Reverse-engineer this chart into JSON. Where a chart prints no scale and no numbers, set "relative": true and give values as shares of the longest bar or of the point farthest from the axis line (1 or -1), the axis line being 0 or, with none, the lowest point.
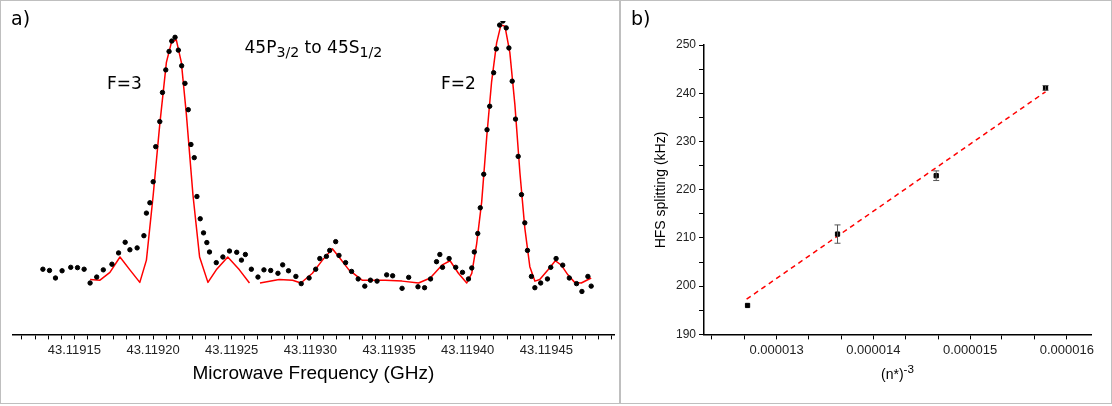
{
  "chart_data": [
    {
      "type": "scatter",
      "title": "45P$_{3/2}$ to 45S$_{1/2}$",
      "xlabel": "Microwave Frequency (GHz)",
      "relative": true,
      "xlim": [
        43.119111,
        43.119493
      ],
      "xticks": [
        {
          "value": 43.11911667,
          "label": null
        },
        {
          "value": 43.119125,
          "label": null
        },
        {
          "value": 43.11913333,
          "label": null
        },
        {
          "value": 43.11914167,
          "label": null
        },
        43.11915,
        {
          "value": 43.11915833,
          "label": null
        },
        {
          "value": 43.11916667,
          "label": null
        },
        {
          "value": 43.119175,
          "label": null
        },
        {
          "value": 43.11918333,
          "label": null
        },
        {
          "value": 43.11919167,
          "label": null
        },
        {
          "value": 43.1192,
          "label": "43.11920"
        },
        {
          "value": 43.11920833,
          "label": null
        },
        {
          "value": 43.11921667,
          "label": null
        },
        {
          "value": 43.119225,
          "label": null
        },
        {
          "value": 43.11923333,
          "label": null
        },
        {
          "value": 43.11924167,
          "label": null
        },
        43.11925,
        {
          "value": 43.11925833,
          "label": null
        },
        {
          "value": 43.11926667,
          "label": null
        },
        {
          "value": 43.119275,
          "label": null
        },
        {
          "value": 43.11928333,
          "label": null
        },
        {
          "value": 43.11929167,
          "label": null
        },
        {
          "value": 43.1193,
          "label": "43.11930"
        },
        {
          "value": 43.11930833,
          "label": null
        },
        {
          "value": 43.11931667,
          "label": null
        },
        {
          "value": 43.119325,
          "label": null
        },
        {
          "value": 43.11933333,
          "label": null
        },
        {
          "value": 43.11934167,
          "label": null
        },
        43.11935,
        {
          "value": 43.11935833,
          "label": null
        },
        {
          "value": 43.11936667,
          "label": null
        },
        {
          "value": 43.119375,
          "label": null
        },
        {
          "value": 43.11938333,
          "label": null
        },
        {
          "value": 43.11939167,
          "label": null
        },
        {
          "value": 43.1194,
          "label": "43.11940"
        },
        {
          "value": 43.11940833,
          "label": null
        },
        {
          "value": 43.11941667,
          "label": null
        },
        {
          "value": 43.119425,
          "label": null
        },
        {
          "value": 43.11943333,
          "label": null
        },
        {
          "value": 43.11944167,
          "label": null
        },
        43.11945,
        {
          "value": 43.11945833,
          "label": null
        },
        {
          "value": 43.11946667,
          "label": null
        },
        {
          "value": 43.119475,
          "label": null
        },
        {
          "value": 43.11948333,
          "label": null
        },
        {
          "value": 43.11949167,
          "label": null
        }
      ],
      "annotations": [
        "a)",
        "F=3",
        "F=2"
      ],
      "series": [
        {
          "type": "scatter",
          "marker": "circle",
          "color": "#000000",
          "x": [
            43.11913,
            43.1191342,
            43.119138,
            43.1191422,
            43.1191477,
            43.119152,
            43.1191562,
            43.11916,
            43.1191642,
            43.1191684,
            43.1191739,
            43.1191781,
            43.1191823,
            43.1191853,
            43.1191899,
            43.1191942,
            43.1191958,
            43.119198,
            43.1192001,
            43.1192017,
            43.1192043,
            43.119206,
            43.1192081,
            43.1192102,
            43.1192119,
            43.119214,
            43.1192161,
            43.1192182,
            43.1192203,
            43.1192224,
            43.1192241,
            43.1192262,
            43.1192279,
            43.11923,
            43.1192321,
            43.1192342,
            43.1192359,
            43.1192402,
            43.1192444,
            43.1192486,
            43.1192532,
            43.1192562,
            43.1192587,
            43.1192625,
            43.1192667,
            43.1192705,
            43.1192748,
            43.1192794,
            43.1192824,
            43.1192861,
            43.1192908,
            43.1192942,
            43.1192992,
            43.1193034,
            43.119306,
            43.1193102,
            43.1193123,
            43.1193161,
            43.1193182,
            43.1193224,
            43.1193262,
            43.1193304,
            43.1193346,
            43.1193382,
            43.1193424,
            43.1193485,
            43.1193523,
            43.1193583,
            43.1193625,
            43.1193684,
            43.1193726,
            43.1193764,
            43.1193802,
            43.1193823,
            43.119384,
            43.1193882,
            43.1193924,
            43.1193967,
            43.1194005,
            43.1194026,
            43.1194042,
            43.1194064,
            43.119408,
            43.1194102,
            43.1194123,
            43.119414,
            43.1194165,
            43.1194182,
            43.1194203,
            43.1194224,
            43.1194245,
            43.1194262,
            43.1194283,
            43.1194304,
            43.1194321,
            43.1194342,
            43.1194363,
            43.119438,
            43.1194405,
            43.1194427,
            43.1194464,
            43.1194507,
            43.1194528,
            43.1194562,
            43.1194604,
            43.1194646,
            43.1194692,
            43.1194726,
            43.1194764,
            43.1194785
          ],
          "values": [
            0.208,
            0.204,
            0.18,
            0.203,
            0.214,
            0.213,
            0.208,
            0.164,
            0.183,
            0.206,
            0.224,
            0.26,
            0.294,
            0.27,
            0.276,
            0.315,
            0.387,
            0.42,
            0.487,
            0.599,
            0.679,
            0.772,
            0.844,
            0.903,
            0.936,
            0.948,
            0.907,
            0.857,
            0.801,
            0.717,
            0.606,
            0.564,
            0.44,
            0.369,
            0.324,
            0.293,
            0.263,
            0.229,
            0.247,
            0.266,
            0.262,
            0.237,
            0.255,
            0.208,
            0.183,
            0.206,
            0.204,
            0.195,
            0.222,
            0.203,
            0.185,
            0.162,
            0.18,
            0.208,
            0.242,
            0.249,
            0.268,
            0.296,
            0.252,
            0.229,
            0.201,
            0.177,
            0.154,
            0.173,
            0.17,
            0.19,
            0.187,
            0.147,
            0.182,
            0.152,
            0.149,
            0.177,
            0.232,
            0.255,
            0.214,
            0.242,
            0.214,
            0.198,
            0.177,
            0.212,
            0.263,
            0.322,
            0.404,
            0.511,
            0.653,
            0.728,
            0.835,
            0.911,
            0.987,
            1,
            0.978,
            0.914,
            0.808,
            0.687,
            0.568,
            0.446,
            0.356,
            0.268,
            0.185,
            0.149,
            0.164,
            0.177,
            0.214,
            0.242,
            0.221,
            0.18,
            0.162,
            0.137,
            0.185,
            0.154
          ]
        },
        {
          "type": "line",
          "color": "#ff0000",
          "x": [
            43.11916,
            43.1191663,
            43.1191726,
            43.119179,
            43.1191853,
            43.1191916,
            43.1191958,
            43.1192001,
            43.1192043,
            43.1192085,
            43.1192117,
            43.1192148,
            43.119218,
            43.1192212,
            43.1192254,
            43.1192296,
            43.1192349,
            43.1192402,
            43.1192475,
            43.1192549,
            43.1192613,
            43.1192645,
            43.119268,
            43.1192802,
            43.1192887,
            43.119294,
            43.1193013,
            43.1193077,
            43.119314,
            43.1193182,
            43.1193245,
            43.1193329,
            43.1193477,
            43.1193583,
            43.1193688,
            43.1193762,
            43.1193836,
            43.1193888,
            43.1193941,
            43.1193994,
            43.1194026,
            43.1194057,
            43.1194089,
            43.1194121,
            43.1194152,
            43.1194184,
            43.1194211,
            43.1194237,
            43.1194268,
            43.11943,
            43.1194332,
            43.1194363,
            43.1194395,
            43.1194427,
            43.1194458,
            43.1194511,
            43.1194557,
            43.1194595,
            43.1194637,
            43.119468,
            43.1194722,
            43.1194785
          ],
          "values": [
            0.175,
            0.173,
            0.198,
            0.247,
            0.206,
            0.166,
            0.237,
            0.444,
            0.671,
            0.868,
            0.932,
            0.94,
            0.868,
            0.702,
            0.444,
            0.247,
            0.166,
            0.206,
            0.247,
            0.206,
            0.164,
            null,
            0.164,
            0.175,
            0.173,
            0.164,
            0.195,
            0.237,
            0.273,
            0.247,
            0.206,
            0.173,
            0.173,
            0.17,
            0.164,
            0.18,
            0.221,
            0.235,
            0.195,
            0.164,
            0.195,
            0.289,
            0.423,
            0.63,
            0.806,
            0.93,
            0.987,
            0.983,
            0.899,
            0.733,
            0.516,
            0.34,
            0.216,
            0.17,
            0.175,
            0.206,
            0.235,
            0.221,
            0.19,
            0.166,
            0.164,
            0.18
          ]
        }
      ]
    },
    {
      "type": "scatter",
      "xlabel": "(n*)$^{-3}$",
      "ylabel": "HFS splitting (kHz)",
      "xlim": [
        1.225e-05,
        1.625e-05
      ],
      "xticks": [
        {
          "value": 1.233e-05,
          "label": null
        },
        {
          "value": 1.267e-05,
          "label": null
        },
        {
          "value": 1.3e-05,
          "label": "0.000013"
        },
        {
          "value": 1.333e-05,
          "label": null
        },
        {
          "value": 1.367e-05,
          "label": null
        },
        {
          "value": 1.4e-05,
          "label": "0.000014"
        },
        {
          "value": 1.433e-05,
          "label": null
        },
        {
          "value": 1.467e-05,
          "label": null
        },
        {
          "value": 1.5e-05,
          "label": "0.000015"
        },
        {
          "value": 1.533e-05,
          "label": null
        },
        {
          "value": 1.567e-05,
          "label": null
        },
        {
          "value": 1.6e-05,
          "label": "0.000016"
        }
      ],
      "ylim": [
        190,
        250
      ],
      "yticks": [
        190,
        {
          "value": 195,
          "label": null
        },
        200,
        {
          "value": 205,
          "label": null
        },
        210,
        {
          "value": 215,
          "label": null
        },
        220,
        {
          "value": 225,
          "label": null
        },
        230,
        {
          "value": 235,
          "label": null
        },
        240,
        {
          "value": 245,
          "label": null
        },
        250
      ],
      "annotations": [
        "b)"
      ],
      "series": [
        {
          "type": "scatter",
          "marker": "square",
          "color": "#000000",
          "x": [
            1.27e-05,
            1.363e-05,
            1.465e-05,
            1.578e-05
          ],
          "values": [
            196.0,
            210.8,
            222.9,
            241.1
          ],
          "errors": [
            null,
            1.9,
            1.0,
            0.5
          ]
        },
        {
          "type": "line",
          "color": "#ff0000",
          "line_style": "dashed",
          "x": [
            1.269e-05,
            1.578e-05
          ],
          "values": [
            197.3,
            240.3
          ]
        }
      ]
    }
  ]
}
